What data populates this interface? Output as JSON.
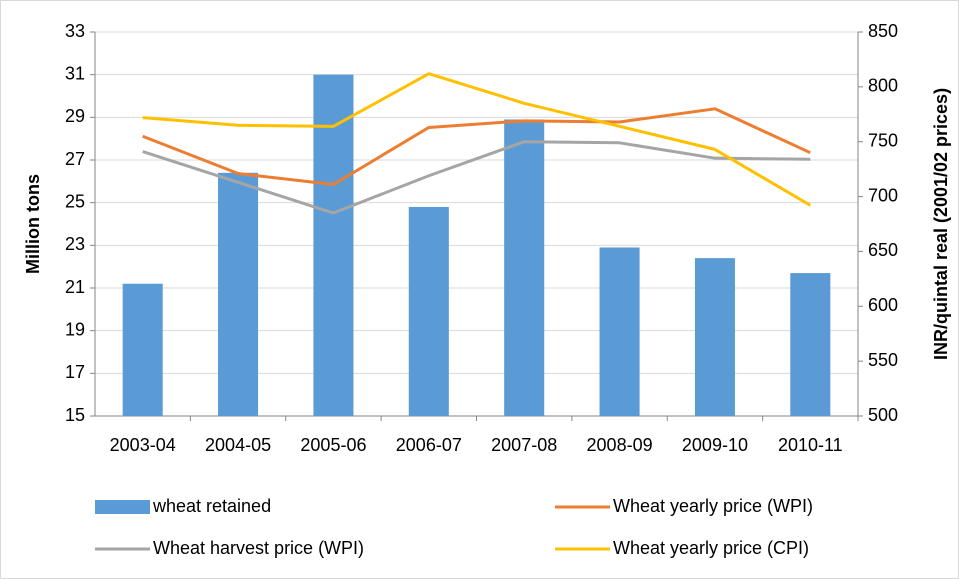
{
  "chart_data": {
    "type": "bar",
    "categories": [
      "2003-04",
      "2004-05",
      "2005-06",
      "2006-07",
      "2007-08",
      "2008-09",
      "2009-10",
      "2010-11"
    ],
    "ylabel": "Million tons",
    "y2label": "INR/quintal real (2001/02 prices)",
    "ylim": [
      15,
      33
    ],
    "yticks": [
      15,
      17,
      19,
      21,
      23,
      25,
      27,
      29,
      31,
      33
    ],
    "y2lim": [
      500,
      850
    ],
    "y2ticks": [
      500,
      550,
      600,
      650,
      700,
      750,
      800,
      850
    ],
    "grid": true,
    "legend": "bottom",
    "series": [
      {
        "name": "wheat retained",
        "type": "bar",
        "color": "#5b9bd5",
        "values": [
          21.2,
          26.4,
          31.0,
          24.8,
          28.9,
          22.9,
          22.4,
          21.7
        ]
      },
      {
        "name": "Wheat yearly price (WPI)",
        "type": "line",
        "axis": "y2",
        "color": "#ed7d31",
        "values": [
          755,
          721,
          711,
          763,
          769,
          768,
          780,
          740
        ]
      },
      {
        "name": "Wheat harvest price (WPI)",
        "type": "line",
        "axis": "y2",
        "color": "#a5a5a5",
        "values": [
          741,
          713,
          685,
          719,
          750,
          749,
          735,
          734
        ]
      },
      {
        "name": "Wheat yearly price (CPI)",
        "type": "line",
        "axis": "y2",
        "color": "#ffc000",
        "values": [
          772,
          765,
          764,
          812,
          785,
          764,
          743,
          692
        ]
      }
    ]
  }
}
